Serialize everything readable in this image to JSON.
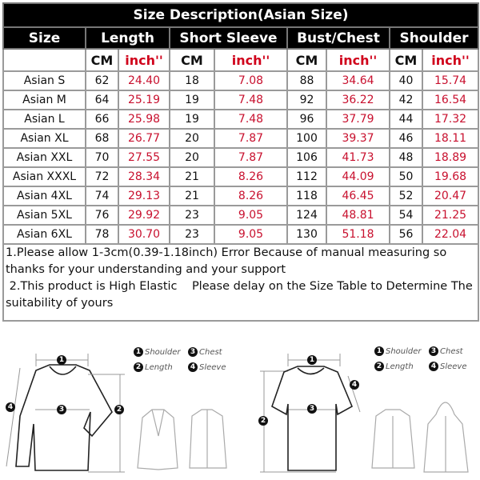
{
  "title": "Size Description(Asian Size)",
  "headers": [
    "Size",
    "Length",
    "Short Sleeve",
    "Bust/Chest",
    "Shoulder"
  ],
  "unit_labels": {
    "cm": "CM",
    "inch": "inch''"
  },
  "rows": [
    [
      "Asian S",
      "62",
      "24.40",
      "18",
      "7.08",
      "88",
      "34.64",
      "40",
      "15.74"
    ],
    [
      "Asian M",
      "64",
      "25.19",
      "19",
      "7.48",
      "92",
      "36.22",
      "42",
      "16.54"
    ],
    [
      "Asian L",
      "66",
      "25.98",
      "19",
      "7.48",
      "96",
      "37.79",
      "44",
      "17.32"
    ],
    [
      "Asian XL",
      "68",
      "26.77",
      "20",
      "7.87",
      "100",
      "39.37",
      "46",
      "18.11"
    ],
    [
      "Asian XXL",
      "70",
      "27.55",
      "20",
      "7.87",
      "106",
      "41.73",
      "48",
      "18.89"
    ],
    [
      "Asian XXXL",
      "72",
      "28.34",
      "21",
      "8.26",
      "112",
      "44.09",
      "50",
      "19.68"
    ],
    [
      "Asian 4XL",
      "74",
      "29.13",
      "21",
      "8.26",
      "118",
      "46.45",
      "52",
      "20.47"
    ],
    [
      "Asian 5XL",
      "76",
      "29.92",
      "23",
      "9.05",
      "124",
      "48.81",
      "54",
      "21.25"
    ],
    [
      "Asian 6XL",
      "78",
      "30.70",
      "23",
      "9.05",
      "130",
      "51.18",
      "56",
      "22.04"
    ]
  ],
  "notes": [
    "1.Please allow 1-3cm(0.39-1.18inch) Error Because of manual measuring so thanks for your understanding and your support",
    " 2.This product is High Elastic    Please delay on the Size Table to Determine The suitability of yours"
  ],
  "legend": {
    "n1": "1",
    "n2": "2",
    "n3": "3",
    "n4": "4",
    "shoulder": "Shoulder",
    "length": "Length",
    "chest": "Chest",
    "sleeve": "Sleeve"
  },
  "colors": {
    "header_bg": "#000000",
    "inch_text": "#c8102e",
    "border": "#9a9a9a"
  }
}
